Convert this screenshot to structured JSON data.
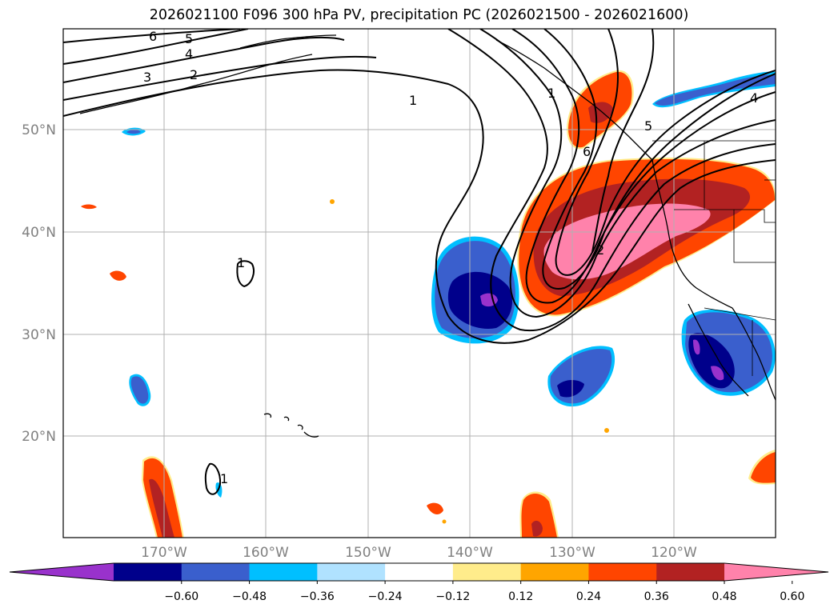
{
  "title": "2026021100 F096 300 hPa PV, precipitation PC (2026021500 - 2026021600)",
  "lat_labels": [
    "50°N",
    "40°N",
    "30°N",
    "20°N"
  ],
  "lon_labels": [
    "170°W",
    "160°W",
    "150°W",
    "140°W",
    "130°W",
    "120°W"
  ],
  "colorbar": {
    "colors": [
      "#9932CC",
      "#00008B",
      "#3A5FCD",
      "#00BFFF",
      "#B0E2FF",
      "#FFFFFF",
      "#FFEC8B",
      "#FFA500",
      "#FF4500",
      "#B22222",
      "#FF82AB"
    ],
    "tick_labels": [
      "−0.60",
      "−0.48",
      "−0.36",
      "−0.24",
      "−0.12",
      "0.12",
      "0.24",
      "0.36",
      "0.48",
      "0.60"
    ]
  },
  "pv_contour_labels": [
    "6",
    "5",
    "4",
    "3",
    "2",
    "1",
    "1",
    "1",
    "2",
    "5",
    "6",
    "4",
    "1"
  ]
}
